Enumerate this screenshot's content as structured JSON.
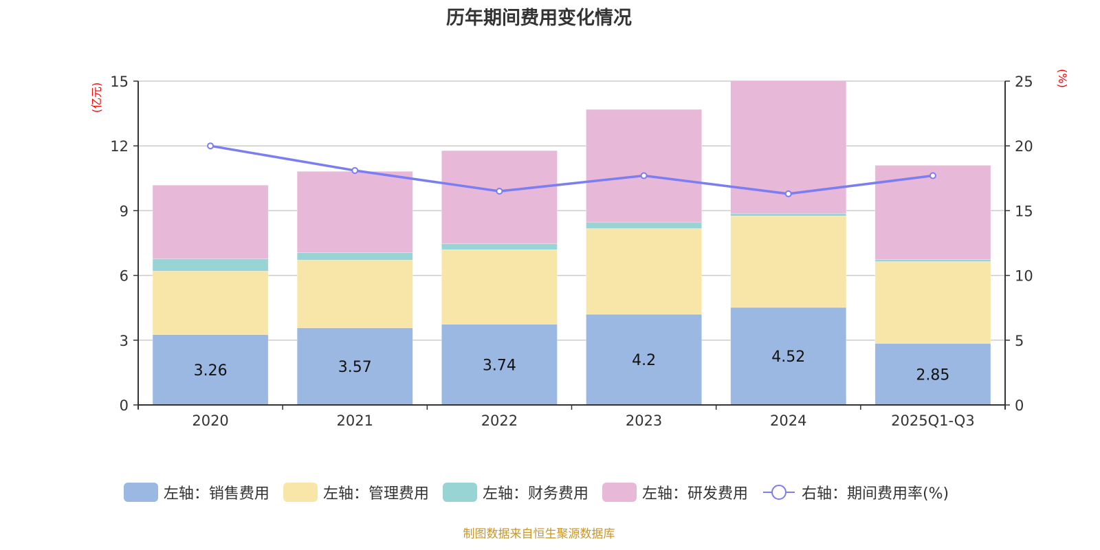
{
  "chart_data": {
    "type": "bar",
    "stacked": true,
    "title": "历年期间费用变化情况",
    "categories": [
      "2020",
      "2021",
      "2022",
      "2023",
      "2024",
      "2025Q1-Q3"
    ],
    "left_axis": {
      "unit": "(亿元)",
      "ylim": [
        0,
        15
      ],
      "ticks": [
        0,
        3,
        6,
        9,
        12,
        15
      ]
    },
    "right_axis": {
      "unit": "(%)",
      "ylim": [
        0,
        25
      ],
      "ticks": [
        0,
        5,
        10,
        15,
        20,
        25
      ]
    },
    "grid": true,
    "series": [
      {
        "name": "左轴：销售费用",
        "axis": "left",
        "kind": "bar",
        "color": "#9bb8e2",
        "values": [
          3.26,
          3.57,
          3.74,
          4.2,
          4.52,
          2.85
        ],
        "show_labels": true
      },
      {
        "name": "左轴：管理费用",
        "axis": "left",
        "kind": "bar",
        "color": "#f7e6a8",
        "values": [
          2.94,
          3.14,
          3.45,
          3.97,
          4.23,
          3.79
        ]
      },
      {
        "name": "左轴：财务费用",
        "axis": "left",
        "kind": "bar",
        "color": "#98d4d4",
        "values": [
          0.57,
          0.35,
          0.28,
          0.3,
          0.12,
          0.09
        ]
      },
      {
        "name": "左轴：研发费用",
        "axis": "left",
        "kind": "bar",
        "color": "#e7b8d8",
        "values": [
          3.41,
          3.76,
          4.31,
          5.22,
          6.9,
          4.37
        ]
      },
      {
        "name": "右轴：期间费用率(%)",
        "axis": "right",
        "kind": "line",
        "color": "#7b7ef0",
        "values": [
          20.0,
          18.1,
          16.5,
          17.7,
          16.3,
          17.7
        ]
      }
    ],
    "legend_position": "bottom",
    "source": "制图数据来自恒生聚源数据库"
  }
}
